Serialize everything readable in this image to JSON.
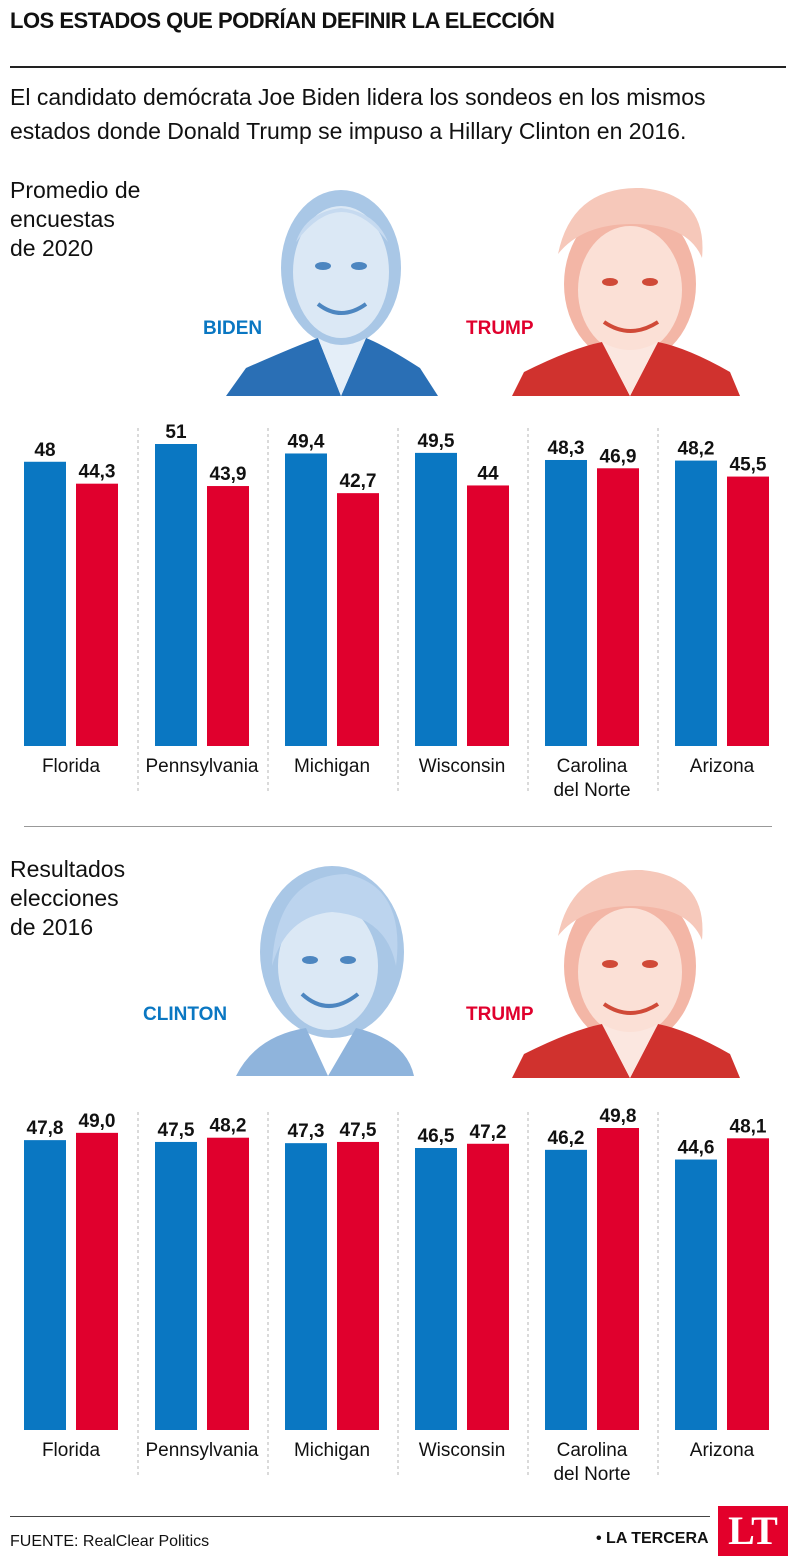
{
  "header": {
    "title": "LOS ESTADOS QUE PODRÍAN DEFINIR LA ELECCIÓN",
    "subtitle": "El candidato demócrata Joe Biden lidera los sondeos en los mismos estados donde Donald Trump se impuso a Hillary Clinton en 2016."
  },
  "colors": {
    "democrat": "#0a77c2",
    "republican": "#e0002d",
    "democrat_light": "#a9c7e6",
    "republican_light": "#f0a090"
  },
  "section_2020": {
    "label": "Promedio de\nencuestas\nde 2020",
    "democrat_name": "BIDEN",
    "republican_name": "TRUMP"
  },
  "section_2016": {
    "label": "Resultados\nelecciones\nde 2016",
    "democrat_name": "CLINTON",
    "republican_name": "TRUMP"
  },
  "chart_data": [
    {
      "type": "bar",
      "categories": [
        "Florida",
        "Pennsylvania",
        "Michigan",
        "Wisconsin",
        "Carolina del Norte",
        "Arizona"
      ],
      "category_lines": [
        [
          "Florida"
        ],
        [
          "Pennsylvania"
        ],
        [
          "Michigan"
        ],
        [
          "Wisconsin"
        ],
        [
          "Carolina",
          "del Norte"
        ],
        [
          "Arizona"
        ]
      ],
      "series": [
        {
          "name": "BIDEN",
          "values": [
            48,
            51,
            49.4,
            49.5,
            48.3,
            48.2
          ],
          "labels": [
            "48",
            "51",
            "49,4",
            "49,5",
            "48,3",
            "48,2"
          ]
        },
        {
          "name": "TRUMP",
          "values": [
            44.3,
            43.9,
            42.7,
            44,
            46.9,
            45.5
          ],
          "labels": [
            "44,3",
            "43,9",
            "42,7",
            "44",
            "46,9",
            "45,5"
          ]
        }
      ],
      "title": "Promedio de encuestas de 2020",
      "ylim": [
        0,
        51
      ],
      "grid": false
    },
    {
      "type": "bar",
      "categories": [
        "Florida",
        "Pennsylvania",
        "Michigan",
        "Wisconsin",
        "Carolina del Norte",
        "Arizona"
      ],
      "category_lines": [
        [
          "Florida"
        ],
        [
          "Pennsylvania"
        ],
        [
          "Michigan"
        ],
        [
          "Wisconsin"
        ],
        [
          "Carolina",
          "del Norte"
        ],
        [
          "Arizona"
        ]
      ],
      "series": [
        {
          "name": "CLINTON",
          "values": [
            47.8,
            47.5,
            47.3,
            46.5,
            46.2,
            44.6
          ],
          "labels": [
            "47,8",
            "47,5",
            "47,3",
            "46,5",
            "46,2",
            "44,6"
          ]
        },
        {
          "name": "TRUMP",
          "values": [
            49.0,
            48.2,
            47.5,
            47.2,
            49.8,
            48.1
          ],
          "labels": [
            "49,0",
            "48,2",
            "47,5",
            "47,2",
            "49,8",
            "48,1"
          ]
        }
      ],
      "title": "Resultados elecciones de 2016",
      "ylim": [
        0,
        49.8
      ],
      "grid": false
    }
  ],
  "footer": {
    "source": "FUENTE: RealClear Politics",
    "brand": "• LA TERCERA",
    "logo": "LT"
  }
}
